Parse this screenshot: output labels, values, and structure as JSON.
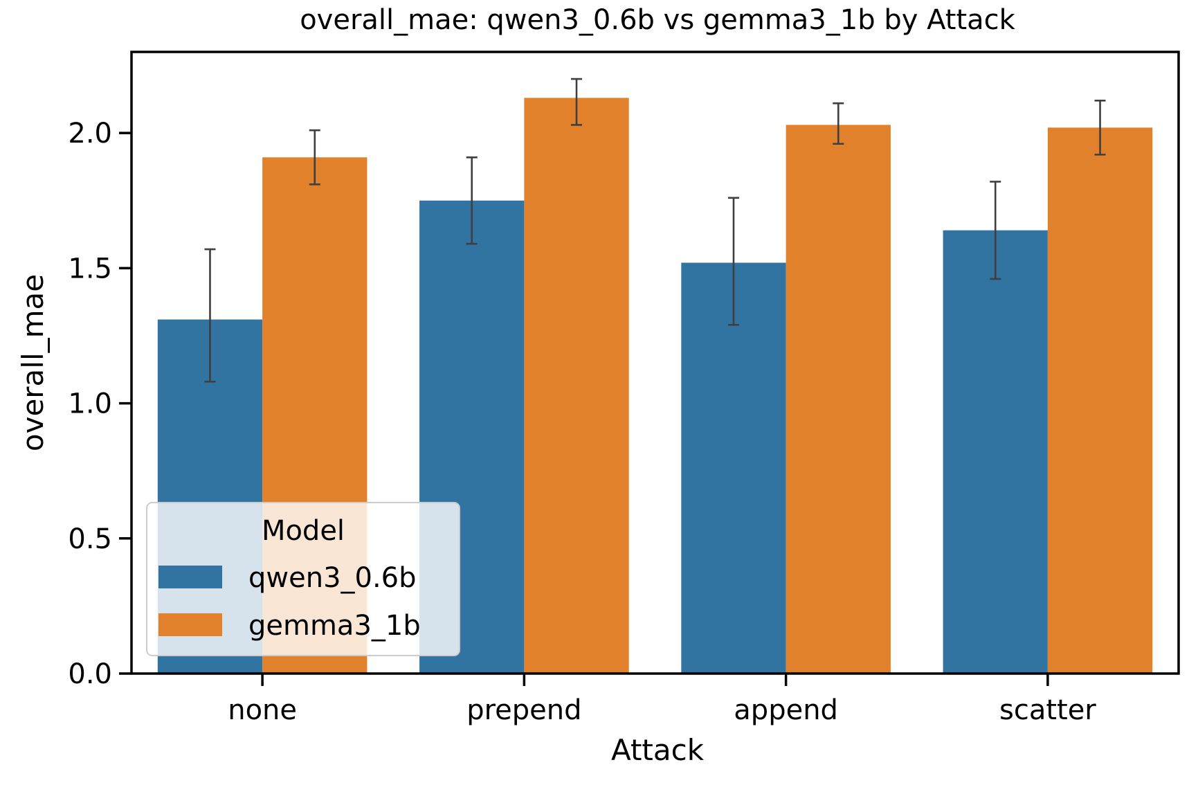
{
  "chart_data": {
    "type": "bar",
    "title": "overall_mae: qwen3_0.6b vs gemma3_1b by Attack",
    "xlabel": "Attack",
    "ylabel": "overall_mae",
    "categories": [
      "none",
      "prepend",
      "append",
      "scatter"
    ],
    "ylim": [
      0,
      2.3
    ],
    "yticks": [
      {
        "value": 0.0,
        "label": "0.0"
      },
      {
        "value": 0.5,
        "label": "0.5"
      },
      {
        "value": 1.0,
        "label": "1.0"
      },
      {
        "value": 1.5,
        "label": "1.5"
      },
      {
        "value": 2.0,
        "label": "2.0"
      }
    ],
    "grid": false,
    "legend": {
      "title": "Model",
      "placement": "lower-left"
    },
    "series": [
      {
        "name": "qwen3_0.6b",
        "color": "#3274a1",
        "values": [
          1.31,
          1.75,
          1.52,
          1.64
        ],
        "err_low": [
          1.08,
          1.59,
          1.29,
          1.46
        ],
        "err_high": [
          1.57,
          1.91,
          1.76,
          1.82
        ]
      },
      {
        "name": "gemma3_1b",
        "color": "#e1812c",
        "values": [
          1.91,
          2.13,
          2.03,
          2.02
        ],
        "err_low": [
          1.81,
          2.03,
          1.96,
          1.92
        ],
        "err_high": [
          2.01,
          2.2,
          2.11,
          2.12
        ]
      }
    ]
  }
}
